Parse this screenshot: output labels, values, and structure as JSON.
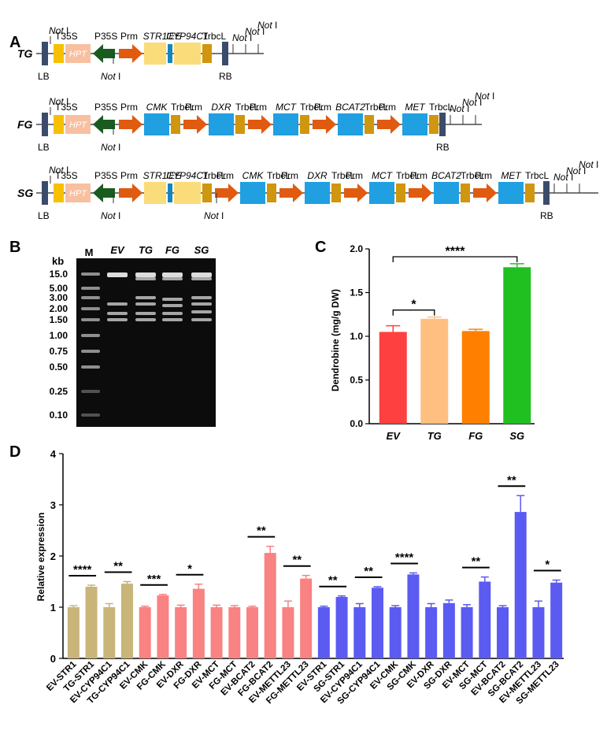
{
  "panels": {
    "a": "A",
    "b": "B",
    "c": "C",
    "d": "D"
  },
  "construct_a": {
    "rows": [
      {
        "name": "TG",
        "lb": "LB",
        "rb": "RB",
        "notI": "Not",
        "notI_suffix": "I",
        "elements": [
          "T35S",
          "HPT",
          "P35S",
          "Prm",
          "STR1",
          "IEE",
          "CYP94C1",
          "TrbcL"
        ]
      },
      {
        "name": "FG",
        "lb": "LB",
        "rb": "RB",
        "elements": [
          "T35S",
          "HPT",
          "P35S",
          "Prm",
          "CMK",
          "TrbcL",
          "Prm",
          "DXR",
          "TrbcL",
          "Prm",
          "MCT",
          "TrbcL",
          "Prm",
          "BCAT2",
          "TrbcL",
          "Prm",
          "MET",
          "TrbcL"
        ]
      },
      {
        "name": "SG",
        "lb": "LB",
        "rb": "RB",
        "elements": [
          "T35S",
          "HPT",
          "P35S",
          "Prm",
          "STR1",
          "IEE",
          "CYP94C1",
          "TrbcL",
          "Prm",
          "CMK",
          "TrbcL",
          "Prm",
          "DXR",
          "TrbcL",
          "Prm",
          "MCT",
          "TrbcL",
          "Prm",
          "BCAT2",
          "TrbcL",
          "Prm",
          "MET",
          "TrbcL"
        ]
      }
    ]
  },
  "gel_b": {
    "unit": "kb",
    "marker_lane": "M",
    "lanes": [
      "EV",
      "TG",
      "FG",
      "SG"
    ],
    "ladder": [
      "15.0",
      "5.00",
      "3.00",
      "2.00",
      "1.50",
      "1.00",
      "0.75",
      "0.50",
      "0.25",
      "0.10"
    ]
  },
  "chart_data": [
    {
      "id": "C",
      "type": "bar",
      "title": "",
      "xlabel": "",
      "ylabel": "Dendrobine (mg/g DW)",
      "categories": [
        "EV",
        "TG",
        "FG",
        "SG"
      ],
      "values": [
        1.05,
        1.2,
        1.06,
        1.79
      ],
      "errors": [
        0.07,
        0.02,
        0.02,
        0.04
      ],
      "colors": [
        "#ff4040",
        "#ffbf80",
        "#ff8000",
        "#20c020"
      ],
      "ylim": [
        0,
        2.0
      ],
      "yticks": [
        "0.0",
        "0.5",
        "1.0",
        "1.5",
        "2.0"
      ],
      "grid": false,
      "significance": [
        {
          "from": "EV",
          "to": "TG",
          "label": "*"
        },
        {
          "from": "EV",
          "to": "SG",
          "label": "****"
        }
      ]
    },
    {
      "id": "D",
      "type": "bar",
      "title": "",
      "xlabel": "",
      "ylabel": "Relative expression",
      "categories": [
        "EV-STR1",
        "TG-STR1",
        "EV-CYP94C1",
        "TG-CYP94C1",
        "EV-CMK",
        "FG-CMK",
        "EV-DXR",
        "FG-DXR",
        "EV-MCT",
        "FG-MCT",
        "EV-BCAT2",
        "FG-BCAT2",
        "EV-METTL23",
        "FG-METTL23",
        "EV-STR1",
        "SG-STR1",
        "EV-CYP94C1",
        "SG-CYP94C1",
        "EV-CMK",
        "SG-CMK",
        "EV-DXR",
        "SG-DXR",
        "EV-MCT",
        "SG-MCT",
        "EV-BCAT2",
        "SG-BCAT2",
        "EV-METTL23",
        "SG-METTL23"
      ],
      "values": [
        1.0,
        1.4,
        1.0,
        1.46,
        1.0,
        1.23,
        1.0,
        1.36,
        1.0,
        1.0,
        1.0,
        2.06,
        1.0,
        1.56,
        1.0,
        1.2,
        1.0,
        1.38,
        1.0,
        1.64,
        1.0,
        1.08,
        1.0,
        1.5,
        1.0,
        2.86,
        1.0,
        1.48
      ],
      "errors": [
        0.03,
        0.03,
        0.07,
        0.04,
        0.02,
        0.02,
        0.04,
        0.09,
        0.04,
        0.03,
        0.02,
        0.13,
        0.12,
        0.06,
        0.02,
        0.02,
        0.07,
        0.02,
        0.03,
        0.03,
        0.07,
        0.06,
        0.05,
        0.09,
        0.03,
        0.32,
        0.12,
        0.05
      ],
      "groups": [
        {
          "color": "#c9b47a",
          "start": 0,
          "end": 3
        },
        {
          "color": "#f98282",
          "start": 4,
          "end": 13
        },
        {
          "color": "#5b5bf2",
          "start": 14,
          "end": 27
        }
      ],
      "ylim": [
        0,
        4
      ],
      "yticks": [
        "0",
        "1",
        "2",
        "3",
        "4"
      ],
      "grid": false,
      "significance": [
        {
          "pair": [
            0,
            1
          ],
          "label": "****"
        },
        {
          "pair": [
            2,
            3
          ],
          "label": "**"
        },
        {
          "pair": [
            4,
            5
          ],
          "label": "***"
        },
        {
          "pair": [
            6,
            7
          ],
          "label": "*"
        },
        {
          "pair": [
            10,
            11
          ],
          "label": "**"
        },
        {
          "pair": [
            12,
            13
          ],
          "label": "**"
        },
        {
          "pair": [
            14,
            15
          ],
          "label": "**"
        },
        {
          "pair": [
            16,
            17
          ],
          "label": "**"
        },
        {
          "pair": [
            18,
            19
          ],
          "label": "****"
        },
        {
          "pair": [
            22,
            23
          ],
          "label": "**"
        },
        {
          "pair": [
            24,
            25
          ],
          "label": "**"
        },
        {
          "pair": [
            26,
            27
          ],
          "label": "*"
        }
      ]
    }
  ]
}
